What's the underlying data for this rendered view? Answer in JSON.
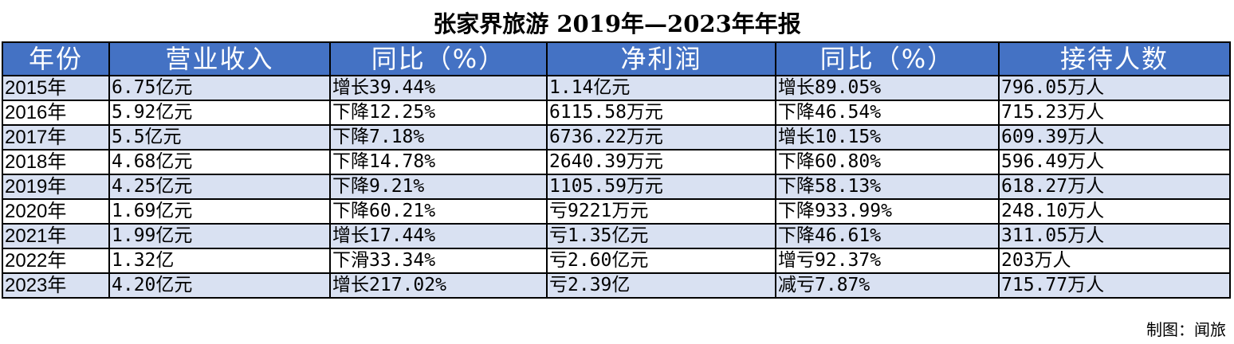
{
  "title": "张家界旅游 2019年—2023年年报",
  "headers": [
    "年份",
    "营业收入",
    "同比（%）",
    "净利润",
    "同比（%）",
    "接待人数"
  ],
  "rows": [
    [
      "2015年",
      "6.75亿元",
      "增长39.44%",
      "1.14亿元",
      "增长89.05%",
      "796.05万人"
    ],
    [
      "2016年",
      "5.92亿元",
      "下降12.25%",
      "6115.58万元",
      "下降46.54%",
      "715.23万人"
    ],
    [
      "2017年",
      "5.5亿元",
      "下降7.18%",
      "6736.22万元",
      "增长10.15%",
      "609.39万人"
    ],
    [
      "2018年",
      "4.68亿元",
      "下降14.78%",
      "2640.39万元",
      "下降60.80%",
      "596.49万人"
    ],
    [
      "2019年",
      "4.25亿元",
      "下降9.21%",
      "1105.59万元",
      "下降58.13%",
      "618.27万人"
    ],
    [
      "2020年",
      "1.69亿元",
      "下降60.21%",
      "亏9221万元",
      "下降933.99%",
      "248.10万人"
    ],
    [
      "2021年",
      "1.99亿元",
      "增长17.44%",
      "亏1.35亿元",
      "下降46.61%",
      "311.05万人"
    ],
    [
      "2022年",
      "1.32亿",
      "下滑33.34%",
      "亏2.60亿元",
      "增亏92.37%",
      "203万人"
    ],
    [
      "2023年",
      "4.20亿元",
      "增长217.02%",
      "亏2.39亿",
      "减亏7.87%",
      "715.77万人"
    ]
  ],
  "credit": "制图：闻旅",
  "colors": {
    "header_bg": "#4472c4",
    "header_text": "#ffffff",
    "band": "#d9e1f2"
  }
}
